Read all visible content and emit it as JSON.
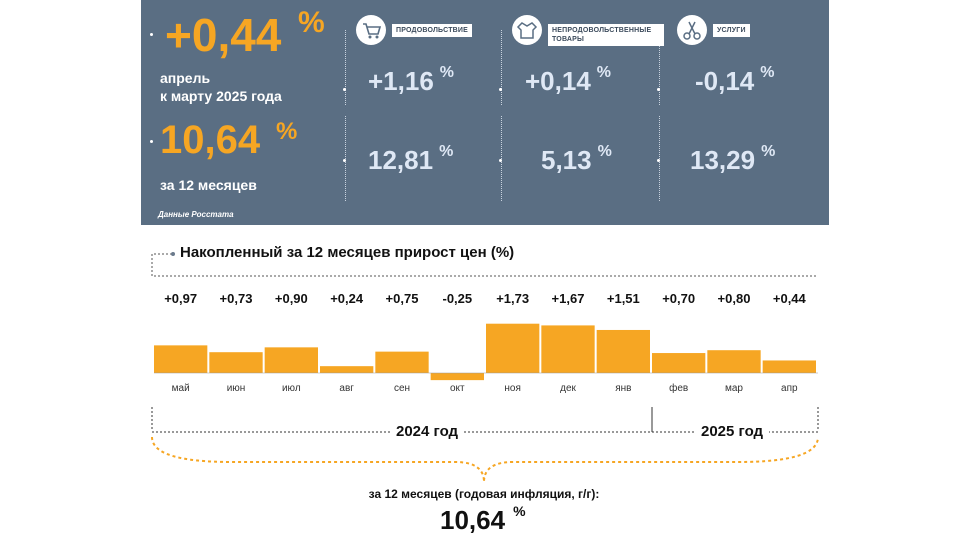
{
  "header": {
    "monthly_value": "+0,44",
    "monthly_pct": "%",
    "monthly_label_line1": "апрель",
    "monthly_label_line2": "к марту 2025 года",
    "annual_value": "10,64",
    "annual_pct": "%",
    "annual_label": "за 12 месяцев",
    "source": "Данные Росстата"
  },
  "categories": [
    {
      "label": "ПРОДОВОЛЬСТВИЕ",
      "icon": "shopping-cart-icon",
      "monthly": "+1,16",
      "annual": "12,81"
    },
    {
      "label": "НЕПРОДОВОЛЬСТВЕННЫЕ ТОВАРЫ",
      "icon": "clothing-icon",
      "monthly": "+0,14",
      "annual": "5,13"
    },
    {
      "label": "УСЛУГИ",
      "icon": "scissors-icon",
      "monthly": "-0,14",
      "annual": "13,29"
    }
  ],
  "pct_sign": "%",
  "chart_data": {
    "type": "bar",
    "title": "Накопленный за 12 месяцев прирост цен (%)",
    "categories": [
      "май",
      "июн",
      "июл",
      "авг",
      "сен",
      "окт",
      "ноя",
      "дек",
      "янв",
      "фев",
      "мар",
      "апр"
    ],
    "values": [
      0.97,
      0.73,
      0.9,
      0.24,
      0.75,
      -0.25,
      1.73,
      1.67,
      1.51,
      0.7,
      0.8,
      0.44
    ],
    "value_labels": [
      "+0,97",
      "+0,73",
      "+0,90",
      "+0,24",
      "+0,75",
      "-0,25",
      "+1,73",
      "+1,67",
      "+1,51",
      "+0,70",
      "+0,80",
      "+0,44"
    ],
    "years": [
      "2024 год",
      "2025 год"
    ],
    "bar_color": "#f6a623"
  },
  "footer": {
    "label": "за 12 месяцев (годовая инфляция, г/г):",
    "value": "10,64",
    "pct": "%"
  },
  "colors": {
    "panel": "#5a6e83",
    "accent": "#f6a623",
    "value_text": "#dfe8f5"
  }
}
